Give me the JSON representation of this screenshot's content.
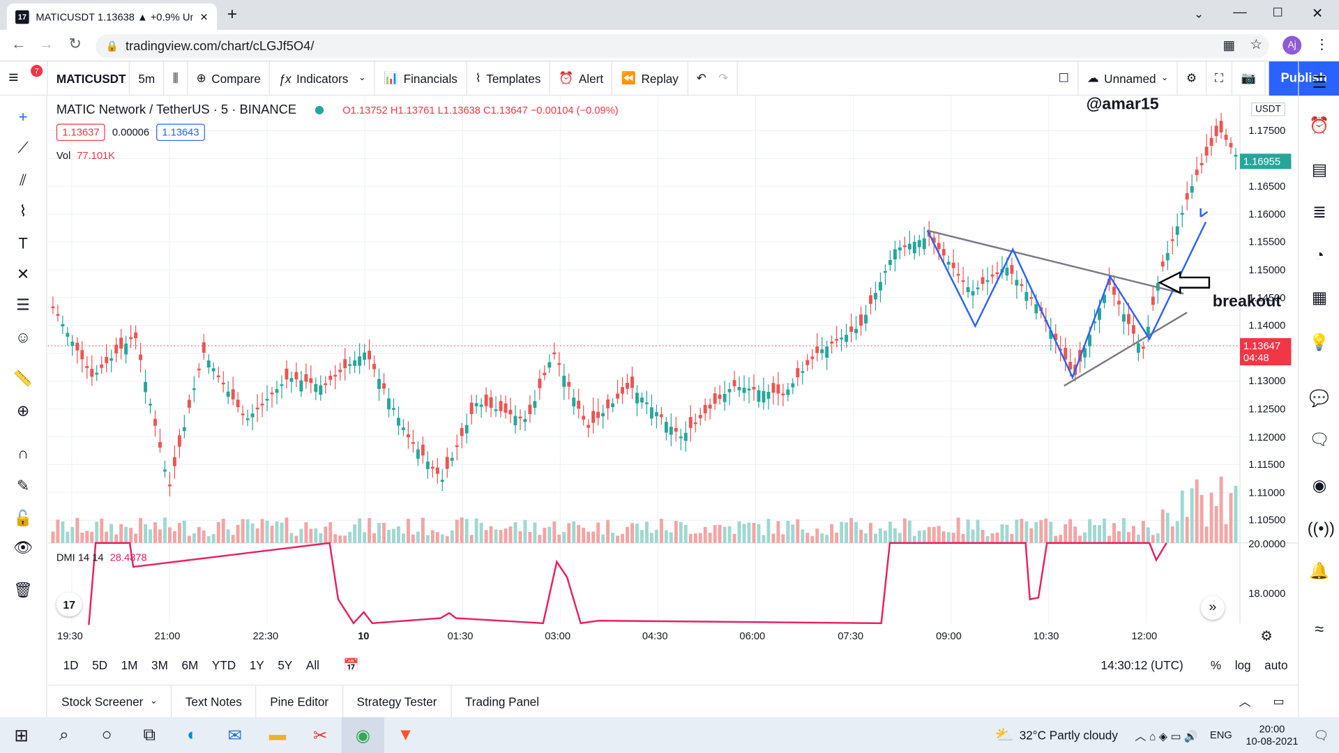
{
  "browser": {
    "tab_title": "MATICUSDT 1.13638 ▲ +0.9% Un",
    "url": "tradingview.com/chart/cLGJf5O4/",
    "profile": "Aj"
  },
  "toolbar": {
    "menu_badge": "7",
    "symbol": "MATICUSDT",
    "interval": "5m",
    "compare": "Compare",
    "indicators": "Indicators",
    "financials": "Financials",
    "templates": "Templates",
    "alert": "Alert",
    "replay": "Replay",
    "layout_name": "Unnamed",
    "publish": "Publish"
  },
  "legend": {
    "title": "MATIC Network / TetherUS · 5 · BINANCE",
    "ohlc": "O1.13752  H1.13761  L1.13638  C1.13647  −0.00104 (−0.09%)",
    "bid": "1.13637",
    "spread": "0.00006",
    "ask": "1.13643",
    "vol_label": "Vol",
    "vol_value": "77.101K",
    "dmi_label": "DMI 14 14",
    "dmi_value": "28.4878"
  },
  "annotations": {
    "author": "@amar15",
    "breakout": "breakout"
  },
  "price_axis": {
    "currency": "USDT",
    "ticks": [
      "1.17500",
      "1.17000",
      "1.16500",
      "1.16000",
      "1.15500",
      "1.15000",
      "1.14500",
      "1.14000",
      "1.13500",
      "1.13000",
      "1.12500",
      "1.12000",
      "1.11500",
      "1.11000",
      "1.10500"
    ],
    "last_high": "1.16955",
    "current_price": "1.13647",
    "countdown": "04:48",
    "dmi_ticks": [
      "20.0000",
      "18.0000"
    ]
  },
  "time_axis": [
    "19:30",
    "21:00",
    "22:30",
    "10",
    "01:30",
    "03:00",
    "04:30",
    "06:00",
    "07:30",
    "09:00",
    "10:30",
    "12:00"
  ],
  "timeframes": [
    "1D",
    "5D",
    "1M",
    "3M",
    "6M",
    "YTD",
    "1Y",
    "5Y",
    "All"
  ],
  "status": {
    "clock": "14:30:12 (UTC)",
    "pct": "%",
    "log": "log",
    "auto": "auto"
  },
  "panels": [
    "Stock Screener",
    "Text Notes",
    "Pine Editor",
    "Strategy Tester",
    "Trading Panel"
  ],
  "taskbar": {
    "weather": "32°C  Partly cloudy",
    "lang": "ENG",
    "time": "20:00",
    "date": "10-08-2021",
    "notif": "2"
  },
  "colors": {
    "up": "#26a69a",
    "down": "#ef5350",
    "accent": "#2962ff",
    "dmi": "#e91e63"
  }
}
